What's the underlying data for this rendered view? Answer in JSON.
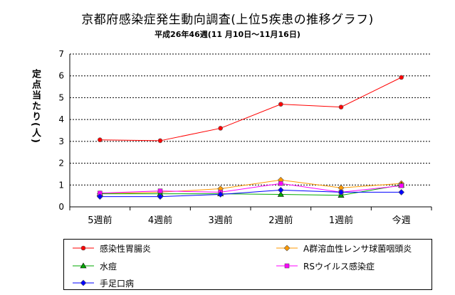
{
  "chart_data": {
    "type": "line",
    "title": "京都府感染症発生動向調査(上位5疾患の推移グラフ)",
    "subtitle": "平成26年46週(11 月10日～11月16日)",
    "xlabel": "",
    "ylabel": "定点当たり(人)",
    "ylim": [
      0,
      7
    ],
    "yticks": [
      0,
      1,
      2,
      3,
      4,
      5,
      6,
      7
    ],
    "grid": true,
    "legend_position": "bottom",
    "categories": [
      "5週前",
      "4週前",
      "3週前",
      "2週前",
      "1週前",
      "今週"
    ],
    "series": [
      {
        "name": "感染性胃腸炎",
        "color": "#ff0000",
        "marker": "circle",
        "values": [
          3.07,
          3.03,
          3.6,
          4.7,
          4.57,
          5.93
        ]
      },
      {
        "name": "A群溶血性レンサ球菌咽頭炎",
        "color": "#ff9900",
        "marker": "diamond",
        "values": [
          0.6,
          0.67,
          0.83,
          1.23,
          0.87,
          1.07
        ]
      },
      {
        "name": "水痘",
        "color": "#00aa00",
        "marker": "triangle",
        "values": [
          0.6,
          0.6,
          0.6,
          0.57,
          0.53,
          1.0
        ]
      },
      {
        "name": "RSウイルス感染症",
        "color": "#ff00ff",
        "marker": "square",
        "values": [
          0.63,
          0.73,
          0.67,
          1.07,
          0.67,
          0.97
        ]
      },
      {
        "name": "手足口病",
        "color": "#0000ff",
        "marker": "diamond",
        "values": [
          0.47,
          0.47,
          0.57,
          0.77,
          0.67,
          0.67
        ]
      }
    ]
  }
}
